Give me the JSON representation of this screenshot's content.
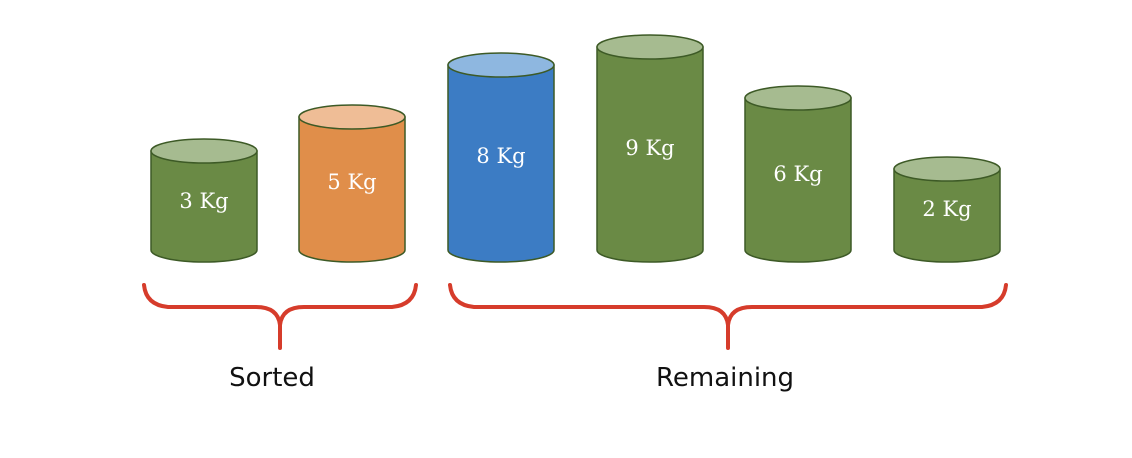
{
  "weights": [
    {
      "label": "3 Kg",
      "kg": 3,
      "color": "#6a8a45",
      "top_color": "#a6bb90",
      "group": "sorted"
    },
    {
      "label": "5 Kg",
      "kg": 5,
      "color": "#e08e4a",
      "top_color": "#efbd96",
      "group": "sorted"
    },
    {
      "label": "8 Kg",
      "kg": 8,
      "color": "#3c7cc4",
      "top_color": "#8eb7e0",
      "group": "remaining"
    },
    {
      "label": "9 Kg",
      "kg": 9,
      "color": "#6a8a45",
      "top_color": "#a6bb90",
      "group": "remaining"
    },
    {
      "label": "6 Kg",
      "kg": 6,
      "color": "#6a8a45",
      "top_color": "#a6bb90",
      "group": "remaining"
    },
    {
      "label": "2 Kg",
      "kg": 2,
      "color": "#6a8a45",
      "top_color": "#a6bb90",
      "group": "remaining"
    }
  ],
  "groups": {
    "sorted": "Sorted",
    "remaining": "Remaining"
  },
  "colors": {
    "outline": "#3d5a26",
    "brace": "#d63c2b"
  }
}
